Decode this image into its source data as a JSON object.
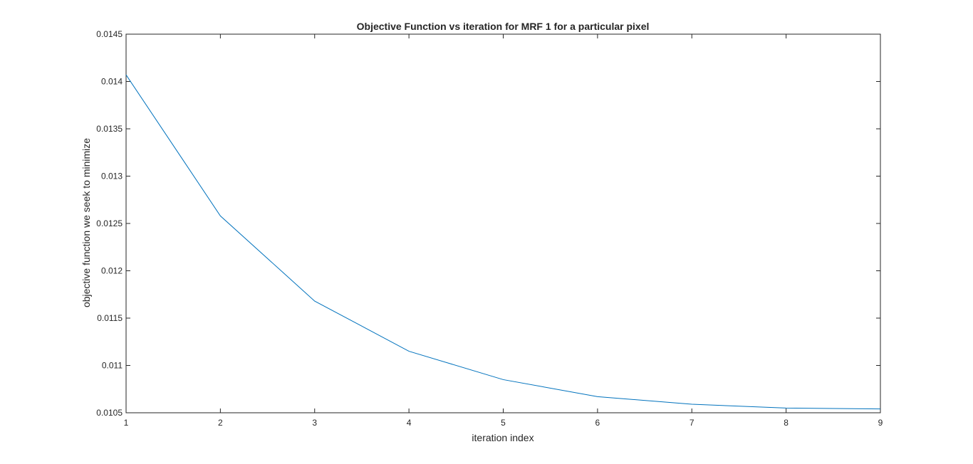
{
  "chart_data": {
    "type": "line",
    "title": "Objective Function vs iteration for MRF 1 for a particular pixel",
    "xlabel": "iteration index",
    "ylabel": "objective function we seek to minimize",
    "xlim": [
      1,
      9
    ],
    "ylim": [
      0.0105,
      0.0145
    ],
    "xticks": [
      1,
      2,
      3,
      4,
      5,
      6,
      7,
      8,
      9
    ],
    "xtick_labels": [
      "1",
      "2",
      "3",
      "4",
      "5",
      "6",
      "7",
      "8",
      "9"
    ],
    "yticks": [
      0.0105,
      0.011,
      0.0115,
      0.012,
      0.0125,
      0.013,
      0.0135,
      0.014,
      0.0145
    ],
    "ytick_labels": [
      "0.0105",
      "0.011",
      "0.0115",
      "0.012",
      "0.0125",
      "0.013",
      "0.0135",
      "0.014",
      "0.0145"
    ],
    "grid": false,
    "box": true,
    "line_color": "#0072BD",
    "series": [
      {
        "x": [
          1,
          2,
          3,
          4,
          5,
          6,
          7,
          8,
          9
        ],
        "values": [
          0.01407,
          0.01258,
          0.01168,
          0.01115,
          0.01085,
          0.01067,
          0.01059,
          0.01055,
          0.01054
        ]
      }
    ]
  }
}
